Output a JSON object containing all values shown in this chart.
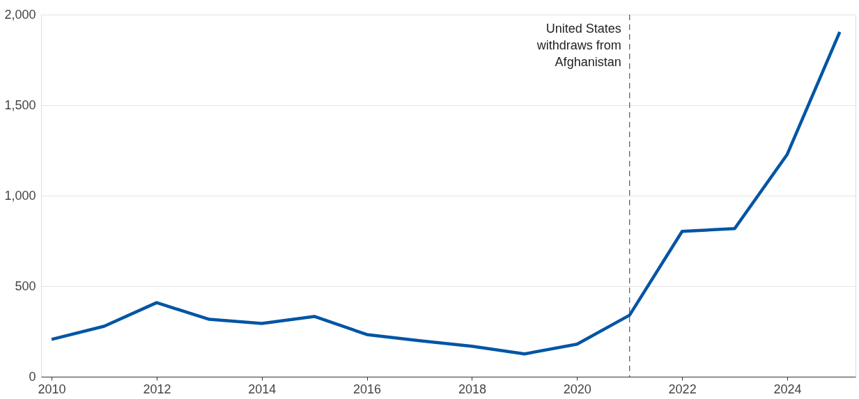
{
  "chart_data": {
    "type": "line",
    "x": [
      2010,
      2011,
      2012,
      2013,
      2014,
      2015,
      2016,
      2017,
      2018,
      2019,
      2020,
      2021,
      2022,
      2023,
      2024,
      2025
    ],
    "series": [
      {
        "color": "#0055a4",
        "values": [
          206,
          279,
          409,
          317,
          294,
          333,
          233,
          199,
          168,
          126,
          180,
          340,
          803,
          818,
          1228,
          1904
        ]
      }
    ],
    "xlim": [
      2009.8,
      2025.3
    ],
    "xticks": [
      2010,
      2012,
      2014,
      2016,
      2018,
      2020,
      2022,
      2024
    ],
    "ylim": [
      0,
      2000
    ],
    "yticks": [
      0,
      500,
      {
        "value": 1000,
        "label": "1,000"
      },
      {
        "value": 1500,
        "label": "1,500"
      },
      {
        "value": 2000,
        "label": "2,000"
      }
    ],
    "grid": "y",
    "marker": "none",
    "line_style": "solid",
    "ref_lines": [
      {
        "axis": "x",
        "value": 2021,
        "label": "United States\nwithdraws from\nAfghanistan",
        "color": "#555555",
        "line_style": "dashed"
      }
    ]
  }
}
